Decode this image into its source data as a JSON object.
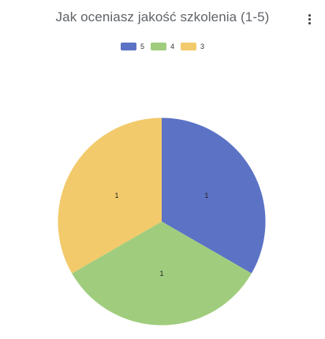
{
  "chart_data": {
    "type": "pie",
    "title": "Jak oceniasz jakość szkolenia (1-5)",
    "categories": [
      "5",
      "4",
      "3"
    ],
    "values": [
      1,
      1,
      1
    ],
    "data_labels": [
      "1",
      "1",
      "1"
    ],
    "colors": [
      "#5b72c5",
      "#a0cd7d",
      "#f2ca6b"
    ],
    "legend_position": "top",
    "start_angle_deg": 0,
    "direction": "clockwise"
  },
  "toolbar": {
    "menu_icon": "more-vert-icon"
  }
}
